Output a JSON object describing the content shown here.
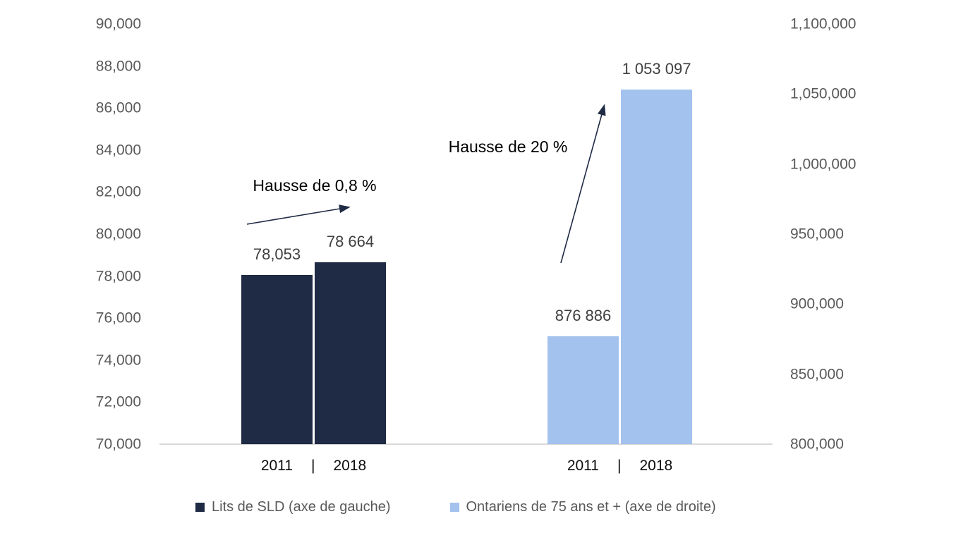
{
  "chart_data": {
    "type": "bar",
    "title": "",
    "dual_axis": true,
    "grid": "off",
    "legend_position": "bottom",
    "background": "#ffffff",
    "axis_line_color": "#D9D9D9",
    "tick_label_color": "#595959",
    "value_label_color": "#404040",
    "annotation_color": "#000000",
    "left_axis": {
      "min": 70000,
      "max": 90000,
      "step": 2000,
      "tick_labels": [
        "90,000",
        "88,000",
        "86,000",
        "84,000",
        "82,000",
        "80,000",
        "78,000",
        "76,000",
        "74,000",
        "72,000",
        "70,000"
      ]
    },
    "right_axis": {
      "min": 800000,
      "max": 1100000,
      "step": 50000,
      "tick_labels": [
        "1,100,000",
        "1,050,000",
        "1,000,000",
        "950,000",
        "900,000",
        "850,000",
        "800,000"
      ]
    },
    "categories": [
      "2011",
      "2018"
    ],
    "category_separator": "|",
    "series": [
      {
        "name": "Lits de SLD (axe de gauche)",
        "axis": "left",
        "color": "#1F2B45",
        "values": [
          78053,
          78664
        ],
        "value_labels": [
          "78,053",
          "78 664"
        ],
        "annotation": "Hausse de 0,8 %"
      },
      {
        "name": "Ontariens de 75 ans et + (axe de droite)",
        "axis": "right",
        "color": "#A3C2EE",
        "values": [
          876886,
          1053097
        ],
        "value_labels": [
          "876 886",
          "1 053 097"
        ],
        "annotation": "Hausse de 20 %"
      }
    ],
    "legend": [
      {
        "label": "Lits de SLD (axe de gauche)",
        "color": "#1F2B45"
      },
      {
        "label": "Ontariens de 75 ans et + (axe de droite)",
        "color": "#A3C2EE"
      }
    ]
  }
}
